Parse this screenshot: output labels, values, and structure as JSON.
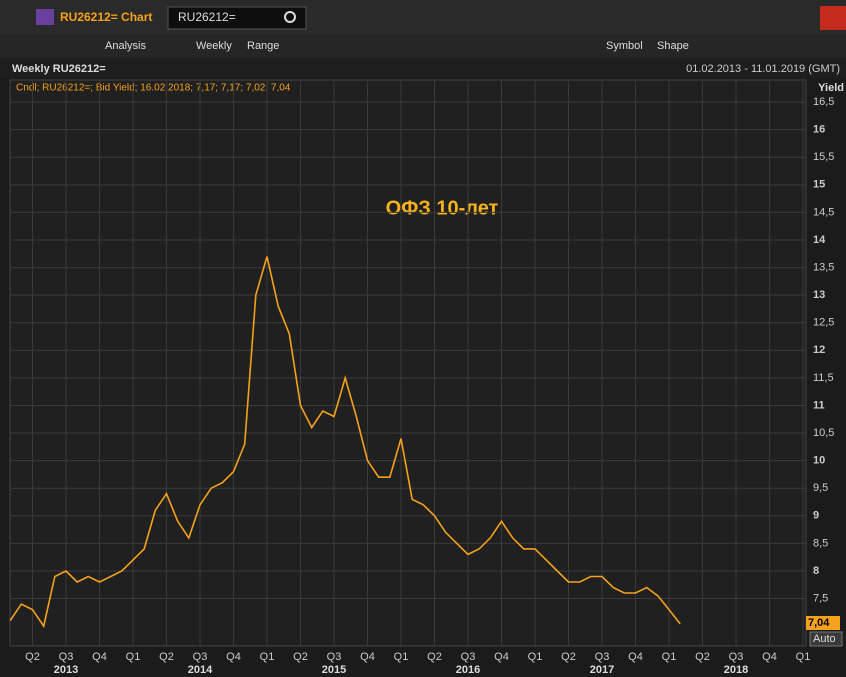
{
  "window": {
    "title": "RU26212= Chart",
    "search": "RU26212="
  },
  "toolbar": {
    "analysis": "Analysis",
    "interval": "Weekly",
    "range": "Range",
    "symbol": "Symbol",
    "shape": "Shape"
  },
  "chart_header": {
    "name": "Weekly RU26212=",
    "period": "01.02.2013 - 11.01.2019 (GMT)"
  },
  "legend_text": "Cndl; RU26212=; Bid Yield; 16.02.2018; 7,17; 7,17; 7,02; 7,04",
  "last_value_label": "7,04",
  "scale_button": "Auto",
  "chart_data": {
    "type": "line",
    "annotation": "ОФЗ 10-лет",
    "y_label": "Yield",
    "color": "#f5a11c",
    "grid": true,
    "x": [
      "2013-02",
      "2013-03",
      "2013-04",
      "2013-05",
      "2013-06",
      "2013-07",
      "2013-08",
      "2013-09",
      "2013-10",
      "2013-11",
      "2013-12",
      "2014-01",
      "2014-02",
      "2014-03",
      "2014-04",
      "2014-05",
      "2014-06",
      "2014-07",
      "2014-08",
      "2014-09",
      "2014-10",
      "2014-11",
      "2014-12",
      "2015-01",
      "2015-02",
      "2015-03",
      "2015-04",
      "2015-05",
      "2015-06",
      "2015-07",
      "2015-08",
      "2015-09",
      "2015-10",
      "2015-11",
      "2015-12",
      "2016-01",
      "2016-02",
      "2016-03",
      "2016-04",
      "2016-05",
      "2016-06",
      "2016-07",
      "2016-08",
      "2016-09",
      "2016-10",
      "2016-11",
      "2016-12",
      "2017-01",
      "2017-02",
      "2017-03",
      "2017-04",
      "2017-05",
      "2017-06",
      "2017-07",
      "2017-08",
      "2017-09",
      "2017-10",
      "2017-11",
      "2017-12",
      "2018-01",
      "2018-02"
    ],
    "values": [
      7.1,
      7.4,
      7.3,
      7.0,
      7.9,
      8.0,
      7.8,
      7.9,
      7.8,
      7.9,
      8.0,
      8.2,
      8.4,
      9.1,
      9.4,
      8.9,
      8.6,
      9.2,
      9.5,
      9.6,
      9.8,
      10.3,
      13.0,
      13.7,
      12.8,
      12.3,
      11.0,
      10.6,
      10.9,
      10.8,
      11.5,
      10.8,
      10.0,
      9.7,
      9.7,
      10.4,
      9.3,
      9.2,
      9.0,
      8.7,
      8.5,
      8.3,
      8.4,
      8.6,
      8.9,
      8.6,
      8.4,
      8.4,
      8.2,
      8.0,
      7.8,
      7.8,
      7.9,
      7.9,
      7.7,
      7.6,
      7.6,
      7.7,
      7.55,
      7.3,
      7.04
    ],
    "ylim": [
      6.64,
      16.9
    ],
    "yticks": [
      {
        "value": 7.5,
        "label": "7,5"
      },
      8,
      {
        "value": 8.5,
        "label": "8,5"
      },
      9,
      {
        "value": 9.5,
        "label": "9,5"
      },
      10,
      {
        "value": 10.5,
        "label": "10,5"
      },
      11,
      {
        "value": 11.5,
        "label": "11,5"
      },
      12,
      {
        "value": 12.5,
        "label": "12,5"
      },
      13,
      {
        "value": 13.5,
        "label": "13,5"
      },
      14,
      {
        "value": 14.5,
        "label": "14,5"
      },
      15,
      {
        "value": 15.5,
        "label": "15,5"
      },
      16,
      {
        "value": 16.5,
        "label": "16,5"
      }
    ],
    "xticks": [
      {
        "value": "2013-04",
        "label": "Q2"
      },
      {
        "value": "2013-07",
        "label": "Q3"
      },
      {
        "value": "2013-10",
        "label": "Q4"
      },
      {
        "value": "2014-01",
        "label": "Q1"
      },
      {
        "value": "2014-04",
        "label": "Q2"
      },
      {
        "value": "2014-07",
        "label": "Q3"
      },
      {
        "value": "2014-10",
        "label": "Q4"
      },
      {
        "value": "2015-01",
        "label": "Q1"
      },
      {
        "value": "2015-04",
        "label": "Q2"
      },
      {
        "value": "2015-07",
        "label": "Q3"
      },
      {
        "value": "2015-10",
        "label": "Q4"
      },
      {
        "value": "2016-01",
        "label": "Q1"
      },
      {
        "value": "2016-04",
        "label": "Q2"
      },
      {
        "value": "2016-07",
        "label": "Q3"
      },
      {
        "value": "2016-10",
        "label": "Q4"
      },
      {
        "value": "2017-01",
        "label": "Q1"
      },
      {
        "value": "2017-04",
        "label": "Q2"
      },
      {
        "value": "2017-07",
        "label": "Q3"
      },
      {
        "value": "2017-10",
        "label": "Q4"
      },
      {
        "value": "2018-01",
        "label": "Q1"
      },
      {
        "value": "2018-04",
        "label": "Q2"
      },
      {
        "value": "2018-07",
        "label": "Q3"
      },
      {
        "value": "2018-10",
        "label": "Q4"
      },
      {
        "value": "2019-01",
        "label": "Q1"
      }
    ],
    "years": [
      {
        "value": "2013-07",
        "label": "2013"
      },
      {
        "value": "2014-07",
        "label": "2014"
      },
      {
        "value": "2015-07",
        "label": "2015"
      },
      {
        "value": "2016-07",
        "label": "2016"
      },
      {
        "value": "2017-07",
        "label": "2017"
      },
      {
        "value": "2018-07",
        "label": "2018"
      }
    ]
  }
}
